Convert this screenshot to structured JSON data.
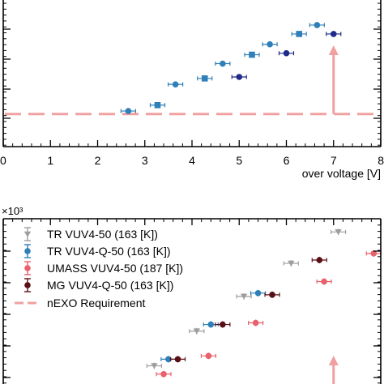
{
  "chart_data": [
    {
      "type": "scatter",
      "title": "",
      "xlabel": "over voltage [V]",
      "ylabel": "",
      "xlim": [
        0,
        8
      ],
      "ylim": [
        0,
        1
      ],
      "x_ticks": [
        "0",
        "1",
        "2",
        "3",
        "4",
        "5",
        "6",
        "7",
        "8"
      ],
      "grid": false,
      "series": [
        {
          "color": "#2f7fb8",
          "marker": "circle",
          "points": [
            [
              2.65,
              0.24
            ],
            [
              3.65,
              0.42
            ],
            [
              4.65,
              0.56
            ],
            [
              5.65,
              0.69
            ],
            [
              6.65,
              0.82
            ]
          ]
        },
        {
          "color": "#2f7fb8",
          "marker": "square",
          "points": [
            [
              3.27,
              0.28
            ],
            [
              4.27,
              0.46
            ],
            [
              5.27,
              0.62
            ],
            [
              6.27,
              0.76
            ]
          ]
        },
        {
          "color": "#1f2a8a",
          "marker": "circle",
          "points": [
            [
              5.0,
              0.47
            ],
            [
              6.0,
              0.63
            ],
            [
              7.0,
              0.76
            ]
          ]
        }
      ],
      "requirement": {
        "value": 0.22,
        "color": "#f0a0a0",
        "arrow_x": 7.0
      }
    },
    {
      "type": "scatter",
      "title": "",
      "xlabel": "",
      "ylabel": "",
      "y_multiplier": "×10³",
      "xlim": [
        0,
        8
      ],
      "ylim": [
        0,
        1
      ],
      "grid": false,
      "legend_position": "top-left",
      "series": [
        {
          "name": "TR VUV4-50 (163 [K])",
          "color": "#9e9e9e",
          "marker": "triangle-down",
          "points": [
            [
              3.2,
              0.11
            ],
            [
              4.1,
              0.32
            ],
            [
              5.1,
              0.53
            ],
            [
              6.1,
              0.73
            ],
            [
              7.1,
              0.92
            ]
          ]
        },
        {
          "name": "TR VUV4-Q-50 (163 [K])",
          "color": "#2f7fb8",
          "marker": "circle",
          "points": [
            [
              3.5,
              0.15
            ],
            [
              4.4,
              0.36
            ],
            [
              5.4,
              0.55
            ]
          ]
        },
        {
          "name": "UMASS VUV4-50 (187 [K])",
          "color": "#e8616b",
          "marker": "circle",
          "points": [
            [
              3.4,
              0.06
            ],
            [
              4.35,
              0.17
            ],
            [
              5.35,
              0.37
            ],
            [
              6.8,
              0.62
            ],
            [
              7.85,
              0.79
            ]
          ]
        },
        {
          "name": "MG VUV4-Q-50 (163 [K])",
          "color": "#5a0f14",
          "marker": "circle",
          "points": [
            [
              3.7,
              0.15
            ],
            [
              4.65,
              0.36
            ],
            [
              5.7,
              0.54
            ],
            [
              6.7,
              0.75
            ]
          ]
        },
        {
          "name": "nEXO Requirement",
          "color": "#f0a0a0",
          "marker": "dashed-line",
          "points": []
        }
      ],
      "requirement": {
        "arrow_x": 7.0
      }
    }
  ]
}
